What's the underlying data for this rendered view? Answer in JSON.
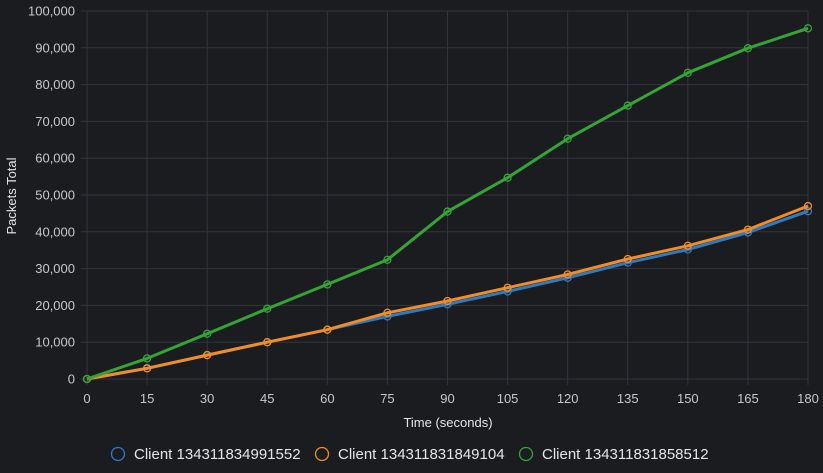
{
  "chart_data": {
    "type": "line",
    "xlabel": "Time (seconds)",
    "ylabel": "Packets Total",
    "xlim": [
      0,
      180
    ],
    "ylim": [
      0,
      100000
    ],
    "x_ticks": [
      0,
      15,
      30,
      45,
      60,
      75,
      90,
      105,
      120,
      135,
      150,
      165,
      180
    ],
    "y_ticks": [
      0,
      10000,
      20000,
      30000,
      40000,
      50000,
      60000,
      70000,
      80000,
      90000,
      100000
    ],
    "y_tick_labels": [
      "0",
      "10,000",
      "20,000",
      "30,000",
      "40,000",
      "50,000",
      "60,000",
      "70,000",
      "80,000",
      "90,000",
      "100,000"
    ],
    "grid": true,
    "legend_position": "bottom",
    "x": [
      0,
      15,
      30,
      45,
      60,
      75,
      90,
      105,
      120,
      135,
      150,
      165,
      180
    ],
    "series": [
      {
        "name": "Client 134311834991552",
        "color": "#2f7bbf",
        "values": [
          0,
          2900,
          6500,
          10000,
          13400,
          17000,
          20300,
          23800,
          27500,
          31600,
          35200,
          39800,
          45600
        ]
      },
      {
        "name": "Client 134311831849104",
        "color": "#f08d2a",
        "values": [
          0,
          2900,
          6500,
          10000,
          13400,
          18000,
          21200,
          24800,
          28400,
          32600,
          36200,
          40600,
          47000
        ]
      },
      {
        "name": "Client 134311831858512",
        "color": "#36a336",
        "values": [
          0,
          5600,
          12300,
          19100,
          25700,
          32400,
          45500,
          54700,
          65300,
          74300,
          83200,
          89900,
          95300
        ]
      }
    ]
  }
}
